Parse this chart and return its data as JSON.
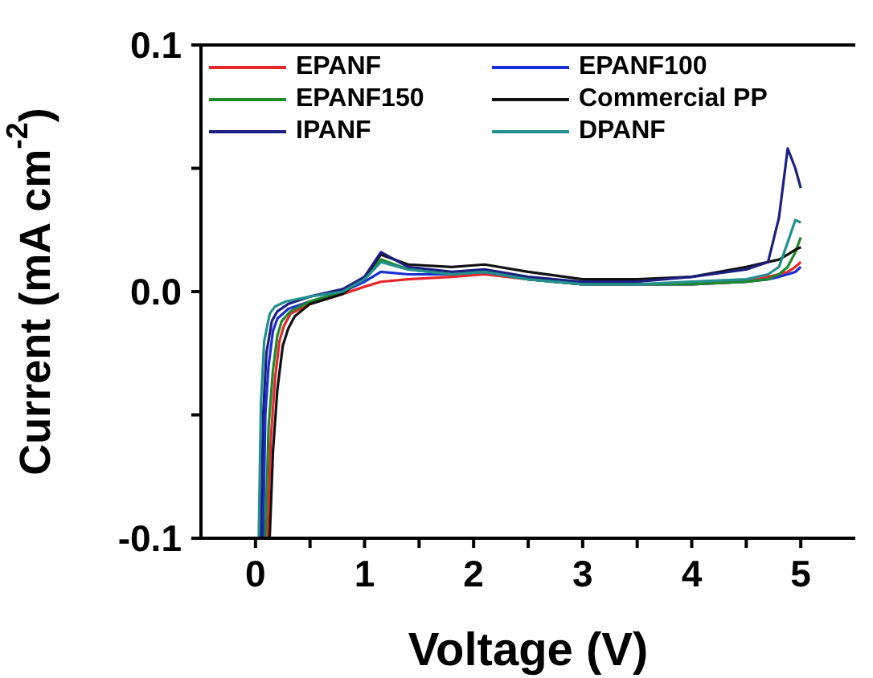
{
  "chart_data": {
    "type": "line",
    "xlabel": "Voltage (V)",
    "ylabel": "Current (mA cm$^{-2}$)",
    "xlim": [
      -0.5,
      5.5
    ],
    "ylim": [
      -0.1,
      0.1
    ],
    "xticks": [
      0,
      {
        "value": 0.5,
        "label": null
      },
      1,
      {
        "value": 1.5,
        "label": null
      },
      2,
      {
        "value": 2.5,
        "label": null
      },
      3,
      {
        "value": 3.5,
        "label": null
      },
      4,
      {
        "value": 4.5,
        "label": null
      },
      5
    ],
    "yticks": [
      {
        "value": -0.1,
        "label": "-0.1"
      },
      {
        "value": -0.05,
        "label": null
      },
      {
        "value": 0,
        "label": "0.0"
      },
      {
        "value": 0.05,
        "label": null
      },
      {
        "value": 0.1,
        "label": "0.1"
      }
    ],
    "grid": false,
    "legend": "top",
    "marker": "none",
    "line_style": "solid",
    "series": [
      {
        "name": "EPANF",
        "color": "#e8262b",
        "x": [
          0.11,
          0.14,
          0.18,
          0.22,
          0.26,
          0.32,
          0.5,
          0.8,
          1.0,
          1.15,
          1.4,
          1.8,
          2.1,
          2.5,
          3,
          3.5,
          4,
          4.5,
          4.7,
          4.8,
          4.88,
          4.95,
          5.0
        ],
        "values": [
          -0.1,
          -0.06,
          -0.035,
          -0.02,
          -0.014,
          -0.009,
          -0.005,
          -0.001,
          0.002,
          0.004,
          0.005,
          0.006,
          0.007,
          0.005,
          0.003,
          0.003,
          0.003,
          0.004,
          0.006,
          0.007,
          0.008,
          0.01,
          0.012
        ]
      },
      {
        "name": "EPANF100",
        "color": "#1a2ed6",
        "x": [
          0.07,
          0.09,
          0.12,
          0.16,
          0.2,
          0.3,
          0.5,
          0.8,
          1.0,
          1.15,
          1.4,
          1.8,
          2.1,
          2.5,
          3,
          3.5,
          4,
          4.5,
          4.7,
          4.8,
          4.88,
          4.95,
          5.0
        ],
        "values": [
          -0.1,
          -0.05,
          -0.03,
          -0.016,
          -0.011,
          -0.007,
          -0.004,
          0,
          0.004,
          0.008,
          0.007,
          0.007,
          0.008,
          0.005,
          0.003,
          0.003,
          0.003,
          0.004,
          0.005,
          0.006,
          0.007,
          0.008,
          0.01
        ]
      },
      {
        "name": "EPANF150",
        "color": "#1e8a2a",
        "x": [
          0.09,
          0.12,
          0.16,
          0.2,
          0.24,
          0.32,
          0.5,
          0.8,
          1.0,
          1.15,
          1.4,
          1.8,
          2.1,
          2.5,
          3,
          3.5,
          4,
          4.5,
          4.7,
          4.8,
          4.88,
          4.95,
          5.0
        ],
        "values": [
          -0.1,
          -0.055,
          -0.032,
          -0.018,
          -0.012,
          -0.008,
          -0.004,
          0,
          0.006,
          0.013,
          0.009,
          0.007,
          0.008,
          0.005,
          0.003,
          0.003,
          0.003,
          0.004,
          0.005,
          0.007,
          0.01,
          0.016,
          0.022
        ]
      },
      {
        "name": "Commercial PP",
        "color": "#111111",
        "x": [
          0.13,
          0.16,
          0.2,
          0.25,
          0.3,
          0.36,
          0.5,
          0.8,
          1.0,
          1.15,
          1.4,
          1.8,
          2.1,
          2.5,
          3,
          3.5,
          4,
          4.5,
          4.7,
          4.8,
          4.88,
          4.95,
          5.0
        ],
        "values": [
          -0.1,
          -0.065,
          -0.04,
          -0.022,
          -0.015,
          -0.01,
          -0.005,
          -0.001,
          0.006,
          0.015,
          0.011,
          0.01,
          0.011,
          0.008,
          0.005,
          0.005,
          0.006,
          0.01,
          0.012,
          0.013,
          0.015,
          0.017,
          0.018
        ]
      },
      {
        "name": "IPANF",
        "color": "#1b1f80",
        "x": [
          0.05,
          0.07,
          0.1,
          0.15,
          0.2,
          0.3,
          0.5,
          0.8,
          1.0,
          1.15,
          1.4,
          1.8,
          2.1,
          2.5,
          3,
          3.5,
          4,
          4.5,
          4.7,
          4.8,
          4.88,
          4.95,
          5.0
        ],
        "values": [
          -0.1,
          -0.05,
          -0.025,
          -0.012,
          -0.008,
          -0.005,
          -0.002,
          0.001,
          0.006,
          0.016,
          0.01,
          0.008,
          0.009,
          0.006,
          0.004,
          0.004,
          0.006,
          0.009,
          0.012,
          0.03,
          0.058,
          0.05,
          0.042
        ]
      },
      {
        "name": "DPANF",
        "color": "#22908e",
        "x": [
          0.03,
          0.05,
          0.08,
          0.13,
          0.18,
          0.28,
          0.5,
          0.8,
          1.0,
          1.15,
          1.4,
          1.8,
          2.1,
          2.5,
          3,
          3.5,
          4,
          4.5,
          4.7,
          4.8,
          4.88,
          4.95,
          5.0
        ],
        "values": [
          -0.1,
          -0.045,
          -0.02,
          -0.009,
          -0.006,
          -0.004,
          -0.002,
          0,
          0.005,
          0.012,
          0.009,
          0.007,
          0.008,
          0.005,
          0.003,
          0.003,
          0.004,
          0.005,
          0.007,
          0.01,
          0.02,
          0.029,
          0.028
        ]
      }
    ]
  }
}
